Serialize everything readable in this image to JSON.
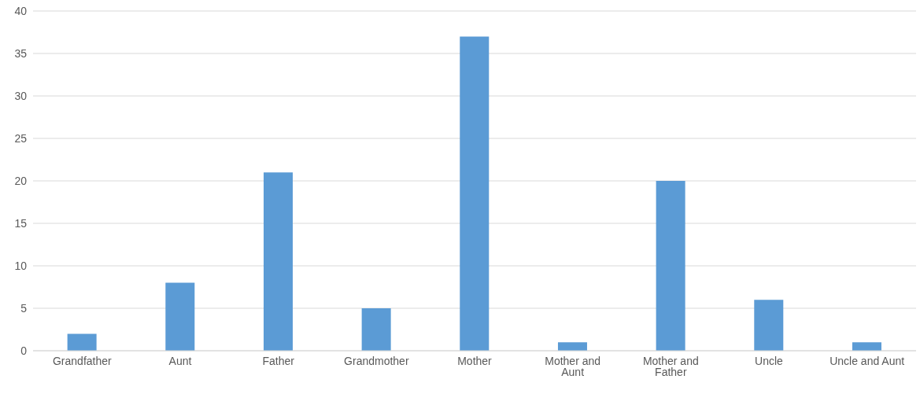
{
  "chart_data": {
    "type": "bar",
    "categories": [
      "Grandfather",
      "Aunt",
      "Father",
      "Grandmother",
      "Mother",
      "Mother and Aunt",
      "Mother and Father",
      "Uncle",
      "Uncle and Aunt"
    ],
    "values": [
      2,
      8,
      21,
      5,
      37,
      1,
      20,
      6,
      1
    ],
    "color": "#5b9bd5",
    "ylim": [
      0,
      40
    ],
    "yticks": [
      0,
      5,
      10,
      15,
      20,
      25,
      30,
      35,
      40
    ],
    "grid": "y",
    "legend": false
  }
}
